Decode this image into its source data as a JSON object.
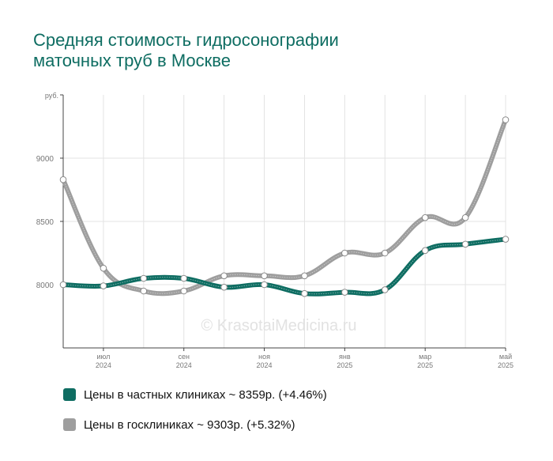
{
  "title_line1": "Средняя стоимость гидросонографии",
  "title_line2": "маточных труб в Москве",
  "watermark": "© KrasotaiMedicina.ru",
  "chart_data": {
    "type": "line",
    "y_unit": "руб.",
    "ylim": [
      7500,
      9500
    ],
    "yticks": [
      8000,
      8500,
      9000
    ],
    "x_points": 12,
    "x_tick_labels": [
      {
        "index": 1,
        "month": "июл",
        "year": "2024"
      },
      {
        "index": 3,
        "month": "сен",
        "year": "2024"
      },
      {
        "index": 5,
        "month": "ноя",
        "year": "2024"
      },
      {
        "index": 7,
        "month": "янв",
        "year": "2025"
      },
      {
        "index": 9,
        "month": "мар",
        "year": "2025"
      },
      {
        "index": 11,
        "month": "май",
        "year": "2025"
      }
    ],
    "grid": true,
    "series": [
      {
        "name": "Цены в частных клиниках ~ 8359р. (+4.46%)",
        "color": "#0e6d62",
        "values": [
          8000,
          7990,
          8050,
          8050,
          7980,
          8000,
          7930,
          7940,
          7960,
          8270,
          8320,
          8359
        ]
      },
      {
        "name": "Цены в госклиниках ~ 9303р. (+5.32%)",
        "color": "#9e9e9e",
        "values": [
          8830,
          8130,
          7950,
          7950,
          8070,
          8070,
          8070,
          8250,
          8250,
          8530,
          8530,
          9303
        ]
      }
    ]
  }
}
